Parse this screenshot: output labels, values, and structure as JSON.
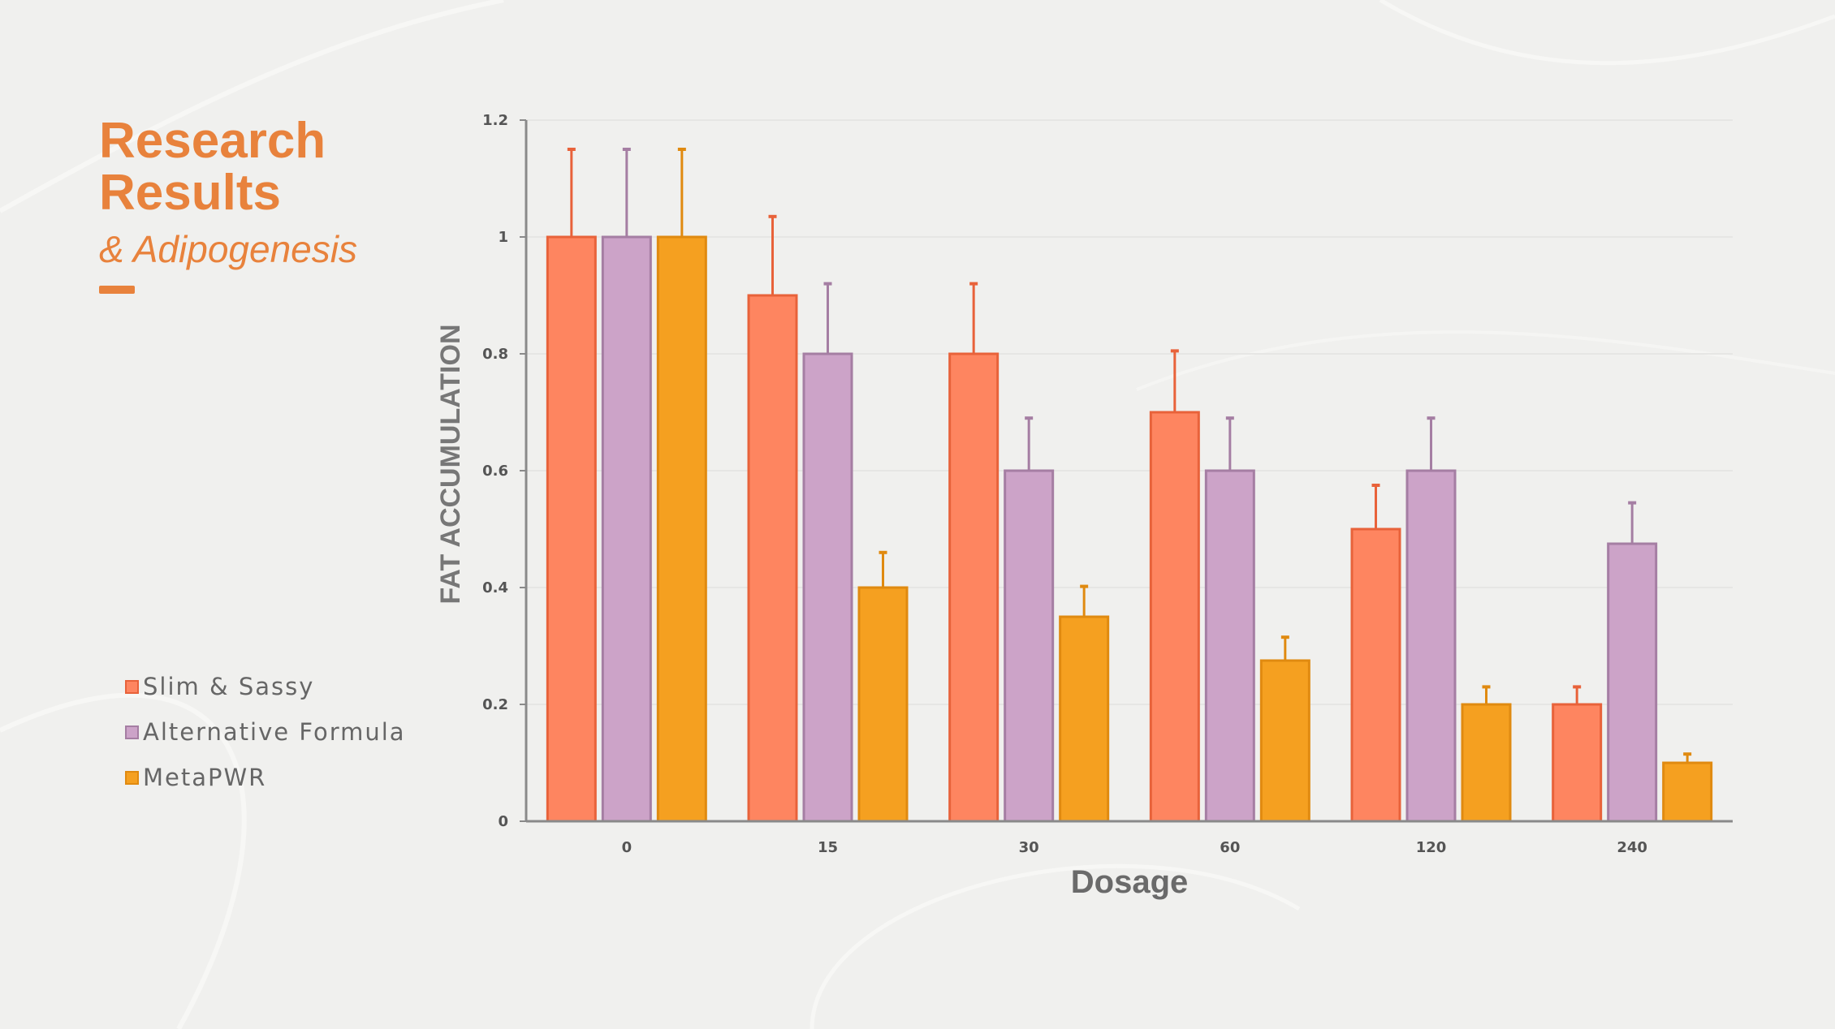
{
  "header": {
    "title_line1": "Research",
    "title_line2": "Results",
    "subtitle": "& Adipogenesis"
  },
  "legend": [
    {
      "label": "Slim & Sassy",
      "color": "#fe8560",
      "border": "#e8623a"
    },
    {
      "label": "Alternative Formula",
      "color": "#cca3c8",
      "border": "#a57ea3"
    },
    {
      "label": "MetaPWR",
      "color": "#f5a020",
      "border": "#e08a10"
    }
  ],
  "chart_data": {
    "type": "bar",
    "title": "",
    "xlabel": "Dosage",
    "ylabel": "FAT ACCUMULATION",
    "categories": [
      "0",
      "15",
      "30",
      "60",
      "120",
      "240"
    ],
    "ylim": [
      0,
      1.2
    ],
    "yticks": [
      "0",
      "0.2",
      "0.4",
      "0.6",
      "0.8",
      "1",
      "1.2"
    ],
    "grid": true,
    "legend_position": "left",
    "series": [
      {
        "name": "Slim & Sassy",
        "values": [
          1.0,
          0.9,
          0.8,
          0.7,
          0.5,
          0.2
        ],
        "errors": [
          0.15,
          0.135,
          0.12,
          0.105,
          0.075,
          0.03
        ]
      },
      {
        "name": "Alternative Formula",
        "values": [
          1.0,
          0.8,
          0.6,
          0.6,
          0.6,
          0.475
        ],
        "errors": [
          0.15,
          0.12,
          0.09,
          0.09,
          0.09,
          0.07
        ]
      },
      {
        "name": "MetaPWR",
        "values": [
          1.0,
          0.4,
          0.35,
          0.275,
          0.2,
          0.1
        ],
        "errors": [
          0.15,
          0.06,
          0.052,
          0.04,
          0.03,
          0.015
        ]
      }
    ]
  }
}
